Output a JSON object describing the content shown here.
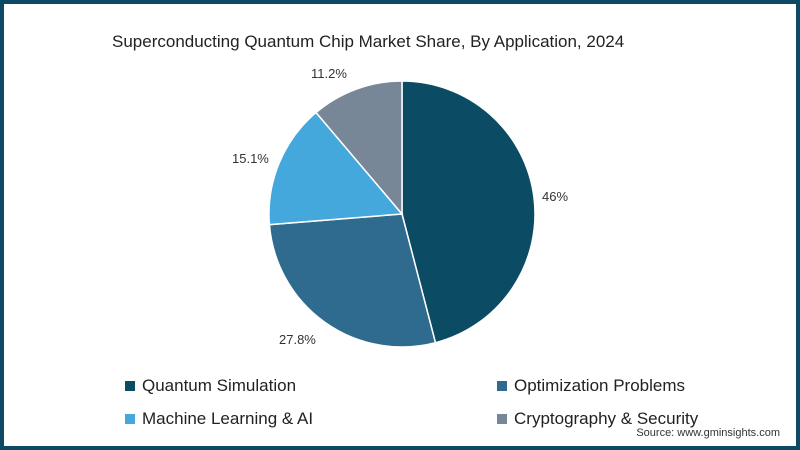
{
  "chart_data": {
    "type": "pie",
    "title": "Superconducting Quantum Chip Market Share, By Application, 2024",
    "categories": [
      "Quantum Simulation",
      "Optimization Problems",
      "Machine Learning & AI",
      "Cryptography & Security"
    ],
    "values": [
      46,
      27.8,
      15.1,
      11.2
    ],
    "labels": [
      "46%",
      "27.8%",
      "15.1%",
      "11.2%"
    ],
    "colors": [
      "#0b4b63",
      "#2f6b8f",
      "#45a8dc",
      "#788797"
    ],
    "legend_position": "bottom",
    "start_angle": "12 o'clock, clockwise"
  },
  "title": "Superconducting Quantum Chip Market Share, By Application, 2024",
  "slices": [
    {
      "label": "46%"
    },
    {
      "label": "27.8%"
    },
    {
      "label": "15.1%"
    },
    {
      "label": "11.2%"
    }
  ],
  "legend": [
    {
      "label": "Quantum Simulation",
      "color": "#0b4b63"
    },
    {
      "label": "Optimization Problems",
      "color": "#2f6b8f"
    },
    {
      "label": "Machine Learning & AI",
      "color": "#45a8dc"
    },
    {
      "label": "Cryptography & Security",
      "color": "#788797"
    }
  ],
  "source": "Source: www.gminsights.com",
  "frame_color": "#0c4a63"
}
